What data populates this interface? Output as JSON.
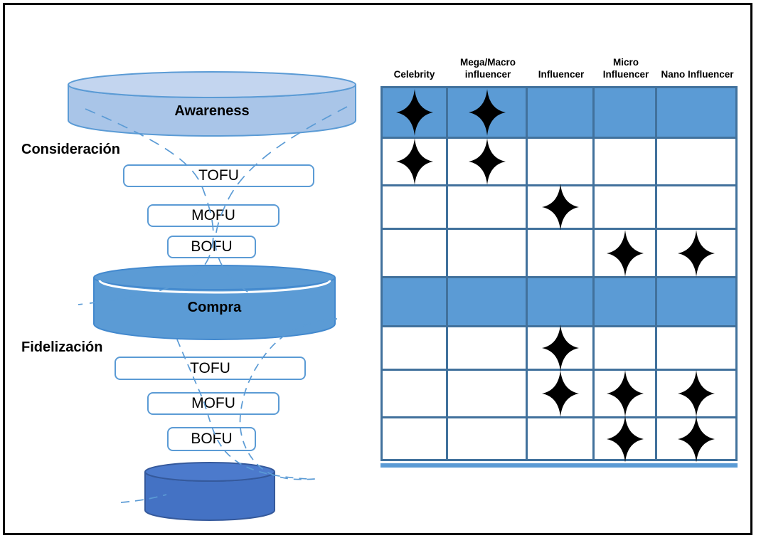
{
  "funnel": {
    "awareness_label": "Awareness",
    "consideracion_label": "Consideración",
    "compra_label": "Compra",
    "fidelizacion_label": "Fidelización",
    "stages": [
      {
        "label": "TOFU"
      },
      {
        "label": "MOFU"
      },
      {
        "label": "BOFU"
      },
      {
        "label": "TOFU"
      },
      {
        "label": "MOFU"
      },
      {
        "label": "BOFU"
      }
    ]
  },
  "matrix": {
    "columns": [
      "Celebrity",
      "Mega/Macro influencer",
      "Influencer",
      "Micro Influencer",
      "Nano Influencer"
    ],
    "star_symbol": "four-pointed-star",
    "rows": [
      {
        "highlighted": true,
        "stars": [
          true,
          true,
          false,
          false,
          false
        ]
      },
      {
        "highlighted": false,
        "stars": [
          true,
          true,
          false,
          false,
          false
        ]
      },
      {
        "highlighted": false,
        "stars": [
          false,
          false,
          true,
          false,
          false
        ]
      },
      {
        "highlighted": false,
        "stars": [
          false,
          false,
          false,
          true,
          true
        ]
      },
      {
        "highlighted": true,
        "stars": [
          false,
          false,
          false,
          false,
          false
        ]
      },
      {
        "highlighted": false,
        "stars": [
          false,
          false,
          true,
          false,
          false
        ]
      },
      {
        "highlighted": false,
        "stars": [
          false,
          false,
          true,
          true,
          true
        ]
      },
      {
        "highlighted": false,
        "stars": [
          false,
          false,
          false,
          true,
          true
        ]
      }
    ]
  },
  "colors": {
    "highlight_blue": "#5B9BD5",
    "grid_border": "#41719C",
    "light_cylinder_fill": "#A9C5E8",
    "light_cylinder_top": "#C3D5EF",
    "mid_cylinder_fill": "#5B9BD5",
    "dark_cylinder_fill": "#4472C4",
    "dashed_curve": "#5B9BD5",
    "star_color": "#000000"
  }
}
